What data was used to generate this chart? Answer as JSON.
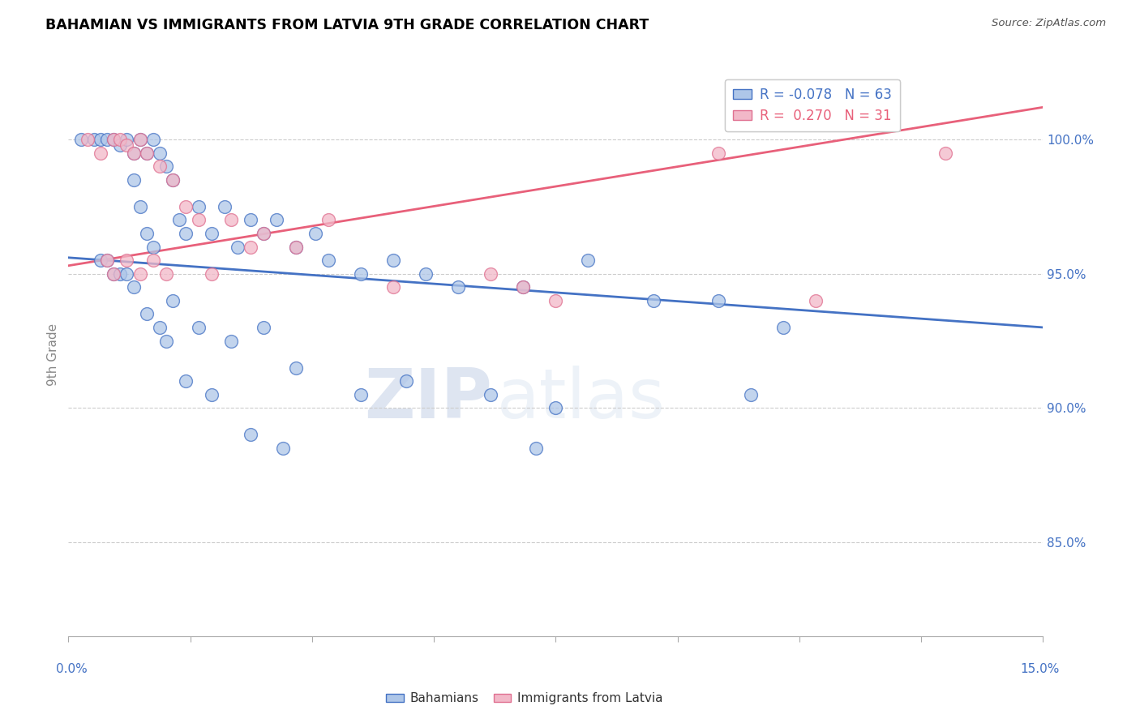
{
  "title": "BAHAMIAN VS IMMIGRANTS FROM LATVIA 9TH GRADE CORRELATION CHART",
  "source": "Source: ZipAtlas.com",
  "ylabel": "9th Grade",
  "y_ticks": [
    85.0,
    90.0,
    95.0,
    100.0
  ],
  "y_tick_labels": [
    "85.0%",
    "90.0%",
    "95.0%",
    "100.0%"
  ],
  "xmin": 0.0,
  "xmax": 15.0,
  "ymin": 81.5,
  "ymax": 102.5,
  "legend_r_blue": "-0.078",
  "legend_n_blue": "63",
  "legend_r_pink": "0.270",
  "legend_n_pink": "31",
  "blue_face_color": "#aec6e8",
  "pink_face_color": "#f2b8c8",
  "blue_edge_color": "#4472c4",
  "pink_edge_color": "#e07090",
  "blue_line_color": "#4472c4",
  "pink_line_color": "#e8607a",
  "blue_label": "Bahamians",
  "pink_label": "Immigrants from Latvia",
  "watermark_zip": "ZIP",
  "watermark_atlas": "atlas",
  "blue_scatter_x": [
    0.2,
    0.4,
    0.5,
    0.6,
    0.7,
    0.8,
    0.9,
    1.0,
    1.1,
    1.2,
    1.3,
    1.4,
    1.5,
    1.6,
    1.7,
    1.8,
    2.0,
    2.2,
    2.4,
    2.6,
    2.8,
    3.0,
    3.2,
    3.5,
    3.8,
    4.0,
    4.5,
    5.0,
    5.5,
    6.0,
    7.0,
    8.0,
    9.0,
    10.0,
    11.0,
    1.0,
    1.1,
    1.2,
    1.3,
    0.5,
    0.6,
    0.7,
    0.8,
    0.9,
    1.0,
    1.2,
    1.4,
    1.6,
    2.0,
    2.5,
    3.0,
    3.5,
    4.5,
    6.5,
    7.5,
    10.5,
    1.5,
    1.8,
    2.2,
    2.8,
    3.3,
    5.2,
    7.2
  ],
  "blue_scatter_y": [
    100.0,
    100.0,
    100.0,
    100.0,
    100.0,
    99.8,
    100.0,
    99.5,
    100.0,
    99.5,
    100.0,
    99.5,
    99.0,
    98.5,
    97.0,
    96.5,
    97.5,
    96.5,
    97.5,
    96.0,
    97.0,
    96.5,
    97.0,
    96.0,
    96.5,
    95.5,
    95.0,
    95.5,
    95.0,
    94.5,
    94.5,
    95.5,
    94.0,
    94.0,
    93.0,
    98.5,
    97.5,
    96.5,
    96.0,
    95.5,
    95.5,
    95.0,
    95.0,
    95.0,
    94.5,
    93.5,
    93.0,
    94.0,
    93.0,
    92.5,
    93.0,
    91.5,
    90.5,
    90.5,
    90.0,
    90.5,
    92.5,
    91.0,
    90.5,
    89.0,
    88.5,
    91.0,
    88.5
  ],
  "pink_scatter_x": [
    0.3,
    0.5,
    0.7,
    0.8,
    0.9,
    1.0,
    1.1,
    1.2,
    1.4,
    1.6,
    1.8,
    2.0,
    2.5,
    3.0,
    3.5,
    4.0,
    0.6,
    0.9,
    1.1,
    1.3,
    1.5,
    2.2,
    2.8,
    5.0,
    6.5,
    7.0,
    7.5,
    10.0,
    11.5,
    13.5,
    0.7
  ],
  "pink_scatter_y": [
    100.0,
    99.5,
    100.0,
    100.0,
    99.8,
    99.5,
    100.0,
    99.5,
    99.0,
    98.5,
    97.5,
    97.0,
    97.0,
    96.5,
    96.0,
    97.0,
    95.5,
    95.5,
    95.0,
    95.5,
    95.0,
    95.0,
    96.0,
    94.5,
    95.0,
    94.5,
    94.0,
    99.5,
    94.0,
    99.5,
    95.0
  ],
  "blue_trend_x": [
    0.0,
    15.0
  ],
  "blue_trend_y": [
    95.6,
    93.0
  ],
  "pink_trend_x": [
    0.0,
    15.0
  ],
  "pink_trend_y": [
    95.3,
    101.2
  ]
}
